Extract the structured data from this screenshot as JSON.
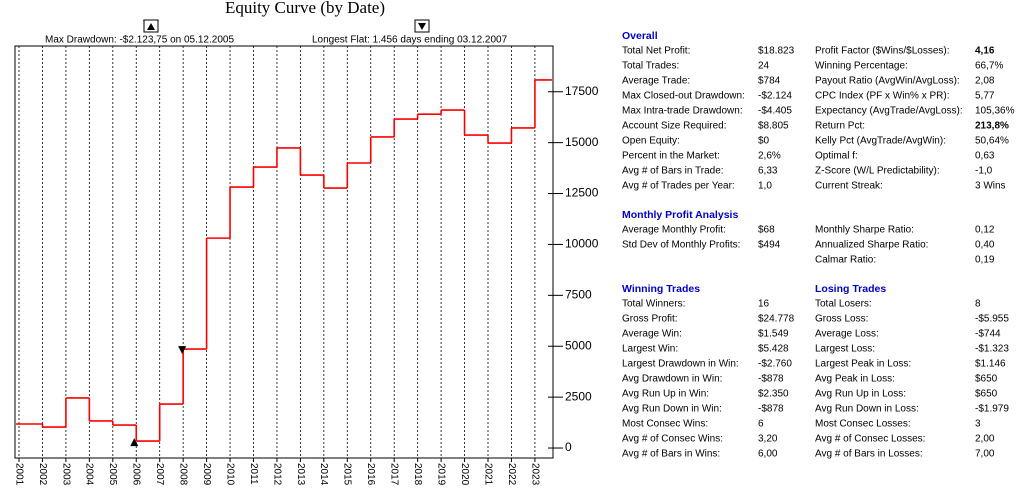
{
  "chart_data": {
    "type": "step",
    "title": "Equity Curve (by Date)",
    "annotations": [
      "Max Drawdown: -$2.123,75 on 05.12.2005",
      "Longest Flat: 1.456 days ending 03.12.2007"
    ],
    "categories": [
      "2001",
      "2002",
      "2003",
      "2004",
      "2005",
      "2006",
      "2007",
      "2008",
      "2009",
      "2010",
      "2011",
      "2012",
      "2013",
      "2014",
      "2015",
      "2016",
      "2017",
      "2018",
      "2019",
      "2020",
      "2021",
      "2022",
      "2023"
    ],
    "values": [
      1180,
      1030,
      2460,
      1330,
      1130,
      340,
      2160,
      4860,
      10310,
      12820,
      13800,
      14740,
      13410,
      12770,
      14000,
      15280,
      16160,
      16400,
      16600,
      15370,
      14980,
      15720,
      18080
    ],
    "color": "#ff0000",
    "ylim": [
      -490,
      20140
    ],
    "yticks": [
      0,
      2500,
      5000,
      7500,
      10000,
      12500,
      15000,
      17500
    ]
  },
  "stats": [
    {
      "title": "Overall",
      "rows": [
        [
          "Total Net Profit:",
          "$18.823"
        ],
        [
          "Total Trades:",
          "24"
        ],
        [
          "Average Trade:",
          "$784"
        ],
        [
          "Max Closed-out Drawdown:",
          "-$2.124"
        ],
        [
          "Max Intra-trade Drawdown:",
          "-$4.405"
        ],
        [
          "Account Size Required:",
          "$8.805"
        ],
        [
          "Open Equity:",
          "$0"
        ],
        [
          "Percent in the Market:",
          "2,6%"
        ],
        [
          "Avg # of Bars in Trade:",
          "6,33"
        ],
        [
          "Avg # of Trades per Year:",
          "1,0"
        ]
      ]
    },
    {
      "rows": [
        [
          "Profit Factor ($Wins/$Losses):",
          "4,16"
        ],
        [
          "Winning Percentage:",
          "66,7%"
        ],
        [
          "Payout Ratio (AvgWin/AvgLoss):",
          "2,08"
        ],
        [
          "CPC Index (PF x Win% x PR):",
          "5,77"
        ],
        [
          "Expectancy (AvgTrade/AvgLoss):",
          "105,36%"
        ],
        [
          "Return Pct:",
          "213,8%"
        ],
        [
          "Kelly Pct (AvgTrade/AvgWin):",
          "50,64%"
        ],
        [
          "Optimal f:",
          "0,63"
        ],
        [
          "Z-Score (W/L Predictability):",
          "-1,0"
        ],
        [
          "Current Streak:",
          "3 Wins"
        ]
      ]
    },
    {
      "title": "Monthly Profit Analysis",
      "rows": [
        [
          "Average Monthly Profit:",
          "$68"
        ],
        [
          "Std Dev of Monthly Profits:",
          "$494"
        ]
      ]
    },
    {
      "rows": [
        [
          "Monthly Sharpe Ratio:",
          "0,12"
        ],
        [
          "Annualized Sharpe Ratio:",
          "0,40"
        ],
        [
          "Calmar Ratio:",
          "0,19"
        ]
      ]
    },
    {
      "title": "Winning Trades",
      "rows": [
        [
          "Total Winners:",
          "16"
        ],
        [
          "Gross Profit:",
          "$24.778"
        ],
        [
          "Average Win:",
          "$1.549"
        ],
        [
          "Largest Win:",
          "$5.428"
        ],
        [
          "Largest Drawdown in Win:",
          "-$2.760"
        ],
        [
          "Avg Drawdown in Win:",
          "-$878"
        ],
        [
          "Avg Run Up in Win:",
          "$2.350"
        ],
        [
          "Avg Run Down in Win:",
          "-$878"
        ],
        [
          "Most Consec Wins:",
          "6"
        ],
        [
          "Avg # of Consec Wins:",
          "3,20"
        ],
        [
          "Avg # of Bars in Wins:",
          "6,00"
        ]
      ]
    },
    {
      "title": "Losing Trades",
      "rows": [
        [
          "Total Losers:",
          "8"
        ],
        [
          "Gross Loss:",
          "-$5.955"
        ],
        [
          "Average Loss:",
          "-$744"
        ],
        [
          "Largest Loss:",
          "-$1.323"
        ],
        [
          "Largest Peak in Loss:",
          "$1.146"
        ],
        [
          "Avg Peak in Loss:",
          "$650"
        ],
        [
          "Avg Run Up in Loss:",
          "$650"
        ],
        [
          "Avg Run Down in Loss:",
          "-$1.979"
        ],
        [
          "Most Consec Losses:",
          "3"
        ],
        [
          "Avg # of Consec Losses:",
          "2,00"
        ],
        [
          "Avg # of Bars in Losses:",
          "7,00"
        ]
      ]
    }
  ]
}
